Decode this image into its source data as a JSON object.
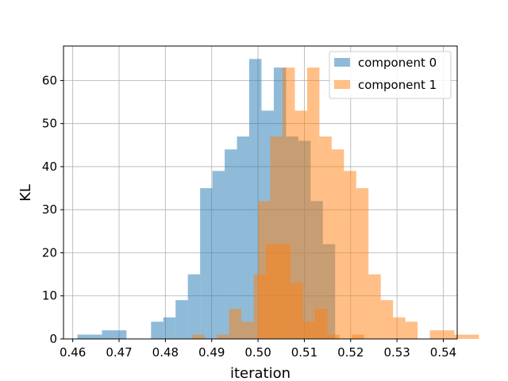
{
  "chart_data": {
    "type": "histogram",
    "xlabel": "iteration",
    "ylabel": "KL",
    "xlim": [
      0.458,
      0.543
    ],
    "ylim": [
      0,
      68
    ],
    "xticks": [
      0.46,
      0.47,
      0.48,
      0.49,
      0.5,
      0.51,
      0.52,
      0.53,
      0.54
    ],
    "xtick_labels": [
      "0.46",
      "0.47",
      "0.48",
      "0.49",
      "0.50",
      "0.51",
      "0.52",
      "0.53",
      "0.54"
    ],
    "yticks": [
      0,
      10,
      20,
      30,
      40,
      50,
      60
    ],
    "ytick_labels": [
      "0",
      "10",
      "20",
      "30",
      "40",
      "50",
      "60"
    ],
    "grid": true,
    "legend_position": "top-right",
    "series": [
      {
        "name": "component 0",
        "color": "#1f77b4",
        "alpha": 0.5,
        "bin_start": 0.461,
        "bin_width": 0.00265,
        "counts": [
          1,
          1,
          2,
          2,
          0,
          0,
          4,
          5,
          9,
          15,
          35,
          39,
          44,
          47,
          65,
          53,
          63,
          47,
          46,
          32,
          22
        ]
      },
      {
        "name": "component 1",
        "color": "#ff7f0e",
        "alpha": 0.5,
        "bin_start": 0.4858,
        "bin_width": 0.00265,
        "counts": [
          1,
          0,
          1,
          7,
          4,
          15,
          22,
          22,
          13,
          4,
          7,
          1,
          0,
          1,
          0
        ]
      },
      {
        "name": "component 1",
        "color": "#ff7f0e",
        "alpha": 0.5,
        "bin_start": 0.5,
        "bin_width": 0.00265,
        "counts": [
          32,
          47,
          63,
          53,
          63,
          47,
          44,
          39,
          35,
          15,
          9,
          5,
          4,
          0,
          2,
          2,
          1,
          1
        ]
      }
    ]
  }
}
